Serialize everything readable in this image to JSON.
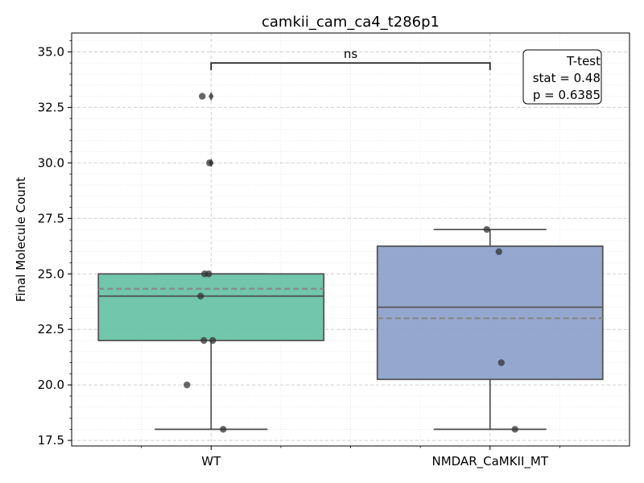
{
  "chart_data": {
    "type": "box",
    "title": "camkii_cam_ca4_t286p1",
    "xlabel": "",
    "ylabel": "Final Molecule Count",
    "ylim": [
      17.25,
      35.85
    ],
    "yticks": [
      17.5,
      20.0,
      22.5,
      25.0,
      27.5,
      30.0,
      32.5,
      35.0
    ],
    "ytick_labels": [
      "17.5",
      "20.0",
      "22.5",
      "25.0",
      "27.5",
      "30.0",
      "32.5",
      "35.0"
    ],
    "grid": true,
    "categories": [
      "WT",
      "NMDAR_CaMKII_MT"
    ],
    "series": [
      {
        "category": "WT",
        "color": "#66c2a5",
        "q1": 22.0,
        "median": 24.0,
        "q3": 25.0,
        "mean": 24.33,
        "whisker_low": 18.0,
        "whisker_high": 25.0,
        "outliers": [
          30.0,
          33.0
        ],
        "points": [
          33.0,
          30.0,
          25.0,
          25.0,
          24.0,
          22.0,
          22.0,
          20.0,
          18.0
        ]
      },
      {
        "category": "NMDAR_CaMKII_MT",
        "color": "#8da0cb",
        "q1": 20.25,
        "median": 23.5,
        "q3": 26.25,
        "mean": 23.0,
        "whisker_low": 18.0,
        "whisker_high": 27.0,
        "outliers": [],
        "points": [
          27.0,
          26.0,
          21.0,
          18.0
        ]
      }
    ],
    "significance": {
      "label": "ns",
      "y": 34.5
    },
    "stats_box": {
      "title": "T-test",
      "stat_line": "stat = 0.48",
      "p_line": "p = 0.6385"
    }
  }
}
